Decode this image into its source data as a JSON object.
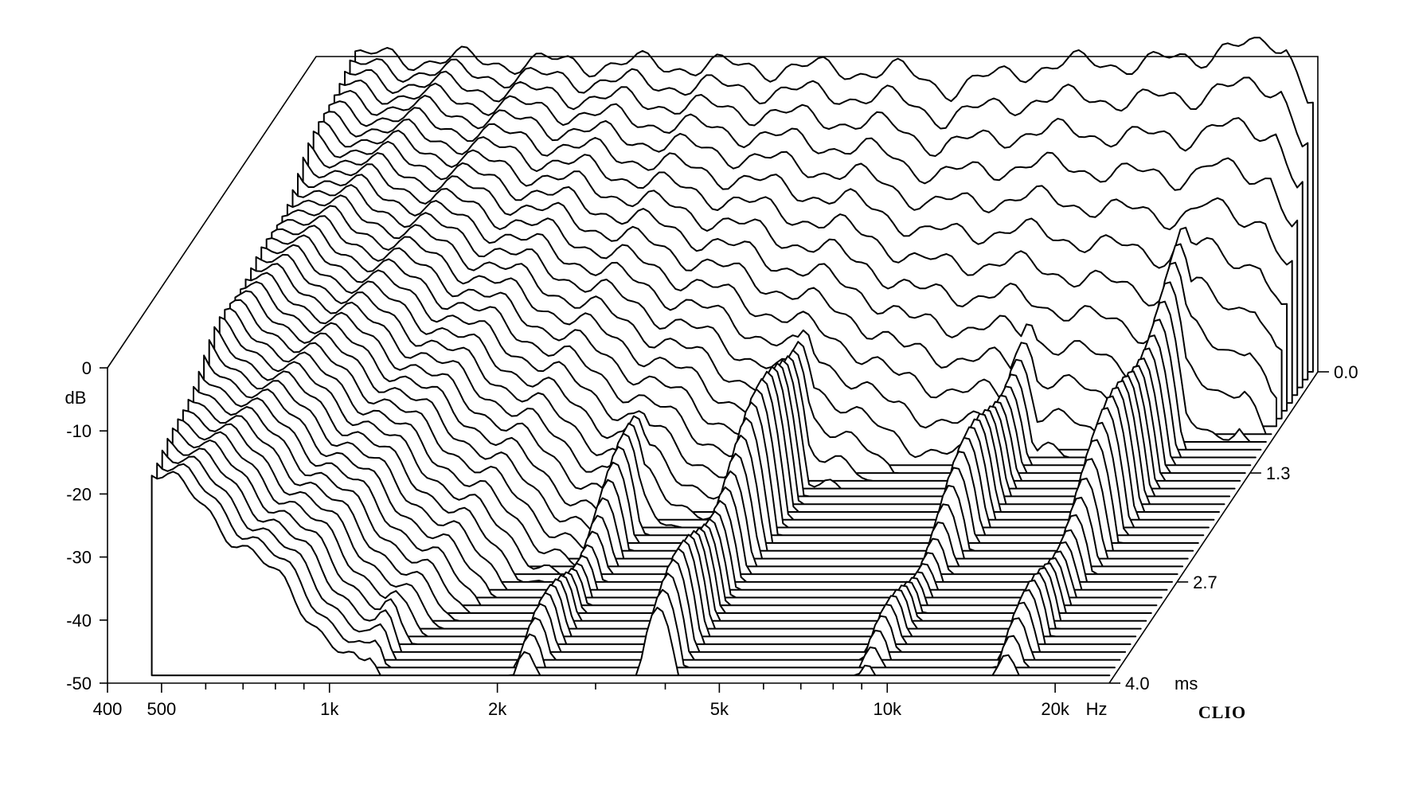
{
  "chart_data": {
    "type": "waterfall",
    "x": {
      "scale": "log",
      "range": [
        400,
        25000
      ],
      "ticks": [
        {
          "value": 400,
          "label": "400"
        },
        {
          "value": 500,
          "label": "500"
        },
        {
          "value": 1000,
          "label": "1k"
        },
        {
          "value": 2000,
          "label": "2k"
        },
        {
          "value": 5000,
          "label": "5k"
        },
        {
          "value": 10000,
          "label": "10k"
        },
        {
          "value": 20000,
          "label": "20k"
        }
      ],
      "minor_ticks": [
        600,
        700,
        800,
        900,
        3000,
        4000,
        6000,
        7000,
        8000,
        9000
      ],
      "unit": "Hz"
    },
    "y": {
      "range": [
        -50,
        0
      ],
      "ticks": [
        {
          "value": 0,
          "label": "0"
        },
        {
          "value": -10,
          "label": "-10"
        },
        {
          "value": -20,
          "label": "-20"
        },
        {
          "value": -30,
          "label": "-30"
        },
        {
          "value": -40,
          "label": "-40"
        },
        {
          "value": -50,
          "label": "-50"
        }
      ],
      "unit": "dB"
    },
    "z": {
      "range": [
        0,
        4.0
      ],
      "ticks": [
        {
          "value": 0.0,
          "label": "0.0"
        },
        {
          "value": 1.3,
          "label": "1.3"
        },
        {
          "value": 2.7,
          "label": "2.7"
        },
        {
          "value": 4.0,
          "label": "4.0"
        }
      ],
      "unit": "ms"
    },
    "brand": "CLIO",
    "slice_count": 40,
    "slice_times_ms": [
      0.0,
      0.1,
      0.2,
      0.3,
      0.4,
      0.5,
      0.6,
      0.7,
      0.8,
      0.9,
      1.0,
      1.1,
      1.2,
      1.3,
      1.4,
      1.5,
      1.6,
      1.7,
      1.8,
      1.9,
      2.0,
      2.1,
      2.2,
      2.3,
      2.4,
      2.5,
      2.6,
      2.7,
      2.8,
      2.9,
      3.0,
      3.1,
      3.2,
      3.3,
      3.4,
      3.5,
      3.6,
      3.7,
      3.8,
      3.9
    ],
    "slice_0_response": {
      "freq": [
        450,
        700,
        1000,
        1500,
        2000,
        2600,
        3500,
        4500,
        5500,
        6500,
        8000,
        10000,
        12000,
        15000,
        17000,
        20000,
        22000,
        24000
      ],
      "db": [
        0,
        -0.5,
        -1,
        -1.2,
        -1.5,
        -1.8,
        -2,
        -2.5,
        -5,
        -3.5,
        -1.5,
        -1,
        -1,
        -0.5,
        2,
        1,
        2,
        -6
      ]
    },
    "resonances": [
      {
        "freq": 1150,
        "db": -30,
        "decay_ms": 4.0
      },
      {
        "freq": 2200,
        "db": -29,
        "decay_ms": 4.0
      },
      {
        "freq": 3800,
        "db": -22,
        "decay_ms": 4.0
      },
      {
        "freq": 9000,
        "db": -28,
        "decay_ms": 3.4
      },
      {
        "freq": 16000,
        "db": -20,
        "decay_ms": 2.6
      }
    ]
  }
}
